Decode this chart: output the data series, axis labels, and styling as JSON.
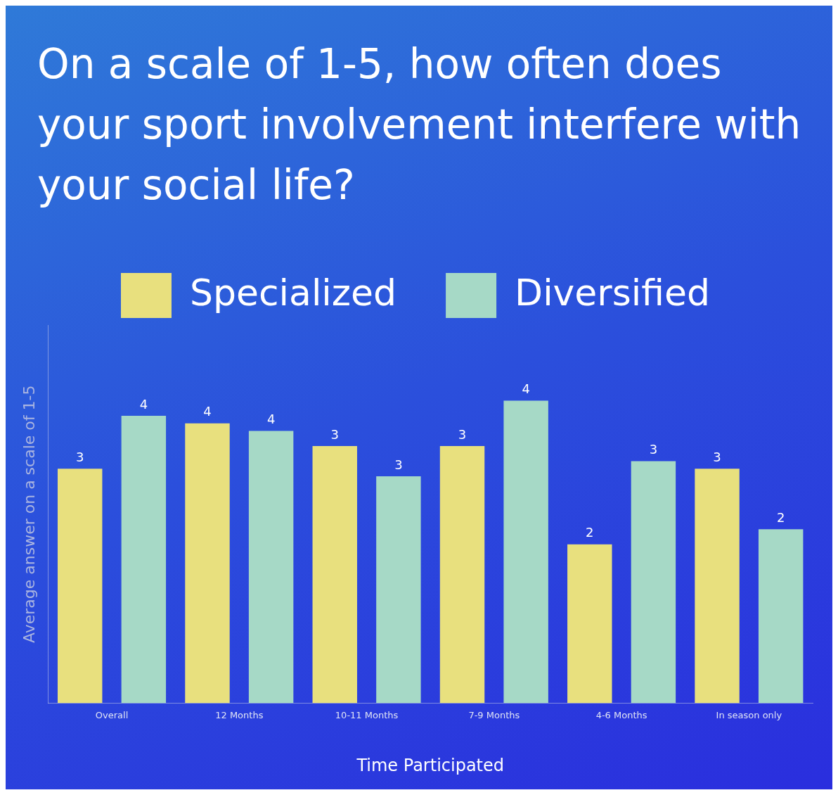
{
  "chart_data": {
    "type": "bar",
    "title": "On a scale of 1-5, how often does your sport involvement interfere with your social life?",
    "xlabel": "Time Participated",
    "ylabel": "Average answer on a scale of 1-5",
    "categories": [
      "Overall",
      "12 Months",
      "10-11 Months",
      "7-9 Months",
      "4-6 Months",
      "In season only"
    ],
    "ylim": [
      0,
      5
    ],
    "series": [
      {
        "name": "Specialized",
        "color": "#e8e07e",
        "values": [
          3.1,
          3.7,
          3.4,
          3.4,
          2.1,
          3.1
        ],
        "value_labels": [
          "3",
          "4",
          "3",
          "3",
          "2",
          "3"
        ]
      },
      {
        "name": "Diversified",
        "color": "#a6d9c6",
        "values": [
          3.8,
          3.6,
          3.0,
          4.0,
          3.2,
          2.3
        ],
        "value_labels": [
          "4",
          "4",
          "3",
          "4",
          "3",
          "2"
        ]
      }
    ],
    "legend": "top",
    "grid": false,
    "tick_labels": "x"
  }
}
